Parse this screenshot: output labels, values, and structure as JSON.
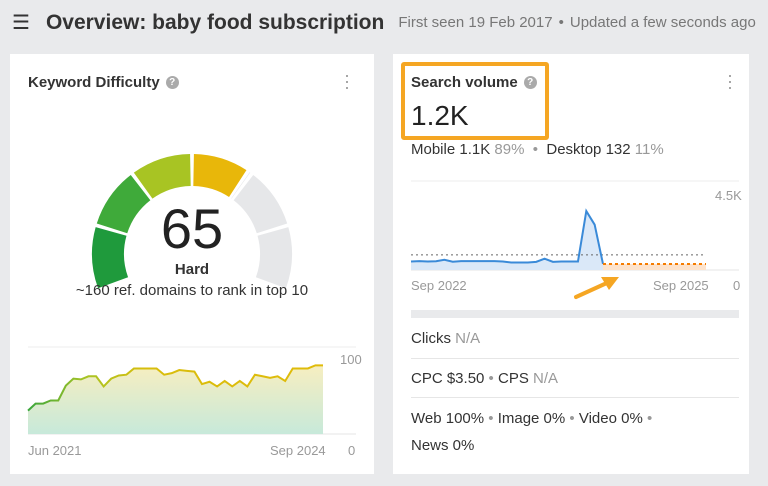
{
  "header": {
    "menu_icon": "hamburger-icon",
    "title": "Overview: baby food subscription",
    "first_seen": "First seen 19 Feb 2017",
    "updated": "Updated a few seconds ago"
  },
  "kd": {
    "title": "Keyword Difficulty",
    "value": "65",
    "level": "Hard",
    "subtitle": "~160 ref. domains to rank in top 10",
    "score_fraction": 0.65,
    "chart_data": {
      "type": "area",
      "x_start": "Jun 2021",
      "x_end": "Sep 2024",
      "ylim": [
        0,
        100
      ],
      "y_ticks": [
        "100",
        "0"
      ],
      "values": [
        30,
        39,
        39,
        43,
        43,
        62,
        71,
        70,
        74,
        74,
        61,
        71,
        75,
        76,
        84,
        84,
        84,
        84,
        76,
        78,
        82,
        81,
        80,
        64,
        67,
        61,
        68,
        61,
        68,
        61,
        76,
        74,
        72,
        74,
        68,
        84,
        84,
        84,
        88,
        88
      ]
    }
  },
  "sv": {
    "title": "Search volume",
    "value": "1.2K",
    "mobile_label": "Mobile",
    "mobile_value": "1.1K",
    "mobile_pct": "89%",
    "desktop_label": "Desktop",
    "desktop_value": "132",
    "desktop_pct": "11%",
    "chart_data": {
      "type": "line",
      "x_start": "Sep 2022",
      "x_end": "Sep 2025",
      "ylim": [
        0,
        4500
      ],
      "y_ticks": [
        "4.5K",
        "0"
      ],
      "average": 1000,
      "values": [
        560,
        590,
        560,
        580,
        680,
        550,
        590,
        590,
        590,
        590,
        590,
        560,
        500,
        500,
        500,
        540,
        750,
        540,
        560,
        560,
        560,
        3900,
        3000,
        400
      ],
      "forecast": [
        400,
        400
      ],
      "colors": {
        "line": "#3a8ad8",
        "forecast": "#f57c00",
        "highlight": "#f5a623"
      }
    },
    "clicks_label": "Clicks",
    "clicks_value": "N/A",
    "cpc_label": "CPC",
    "cpc_value": "$3.50",
    "cps_label": "CPS",
    "cps_value": "N/A",
    "web": "Web 100%",
    "image": "Image 0%",
    "video": "Video 0%",
    "news": "News 0%"
  }
}
